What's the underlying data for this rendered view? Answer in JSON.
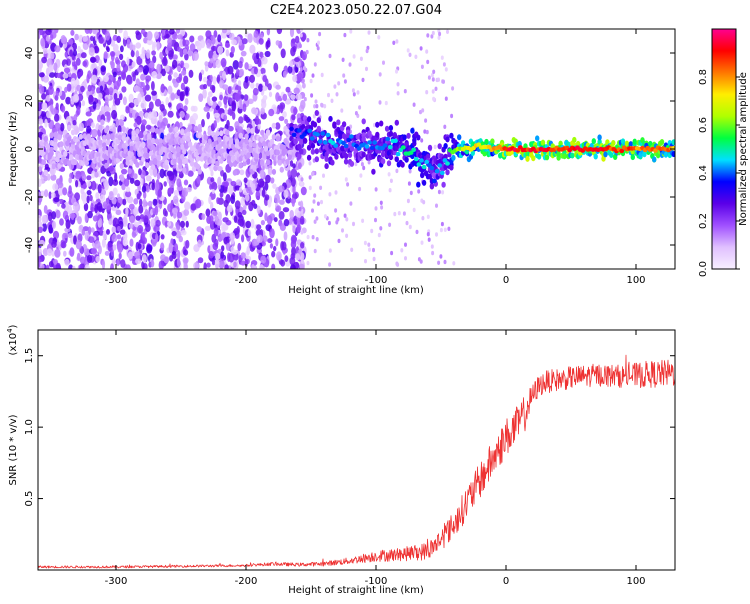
{
  "title": "C2E4.2023.050.22.07.G04",
  "chart_data": [
    {
      "type": "heatmap",
      "id": "spectrogram",
      "xlabel": "Height of straight line (km)",
      "ylabel": "Frequency (Hz)",
      "xlim": [
        -360,
        130
      ],
      "ylim": [
        -50,
        50
      ],
      "xticks": [
        -300,
        -200,
        -100,
        0,
        100
      ],
      "yticks": [
        -40,
        -20,
        0,
        20,
        40
      ],
      "colorbar": {
        "label": "Normalized spectral amplitude",
        "range": [
          0,
          1
        ],
        "ticks": [
          0.0,
          0.2,
          0.4,
          0.6,
          0.8
        ],
        "tick_labels": [
          "0.0",
          "0.2",
          "0.4",
          "0.6",
          "0.8"
        ],
        "colormap": [
          "#f8f0ff",
          "#e0c0ff",
          "#a050ff",
          "#5a00e8",
          "#0000ff",
          "#00e0ff",
          "#00ff40",
          "#b0ff00",
          "#ffee00",
          "#ff7700",
          "#ff0000",
          "#ff0090"
        ]
      },
      "track": {
        "heights": [
          -165,
          -150,
          -135,
          -120,
          -105,
          -90,
          -80,
          -70,
          -60,
          -55,
          -50,
          -45,
          -40,
          -30,
          -20,
          -10,
          0,
          20,
          40,
          60,
          80,
          100,
          120,
          130
        ],
        "frequency": [
          7,
          6,
          3,
          3,
          0,
          2,
          0,
          -2,
          -7,
          -10,
          -8,
          -3,
          0,
          0,
          1,
          0,
          0,
          0,
          0,
          0,
          0,
          0,
          0,
          0
        ],
        "peak_amplitude": [
          0.35,
          0.4,
          0.45,
          0.4,
          0.42,
          0.45,
          0.5,
          0.5,
          0.45,
          0.4,
          0.42,
          0.5,
          0.6,
          0.7,
          0.75,
          0.8,
          0.95,
          0.92,
          0.9,
          0.92,
          0.9,
          0.85,
          0.85,
          0.8
        ]
      },
      "noise_region": {
        "height_range": [
          -360,
          -155
        ],
        "typical_amplitude": 0.2
      }
    },
    {
      "type": "line",
      "id": "snr",
      "xlabel": "Height of straight line (km)",
      "ylabel": "SNR (10 * v/v)",
      "y_multiplier": "(x10",
      "y_multiplier_exp": "4",
      "y_multiplier_close": ")",
      "xlim": [
        -360,
        130
      ],
      "ylim": [
        0,
        1.68
      ],
      "xticks": [
        -300,
        -200,
        -100,
        0,
        100
      ],
      "yticks": [
        0.5,
        1.0,
        1.5
      ],
      "ytick_labels": [
        "0.5",
        "1.0",
        "1.5"
      ],
      "color": "#ee3333",
      "series": [
        {
          "name": "SNR",
          "x": [
            -360,
            -300,
            -250,
            -200,
            -180,
            -160,
            -140,
            -120,
            -100,
            -80,
            -60,
            -50,
            -40,
            -30,
            -20,
            -10,
            0,
            10,
            15,
            20,
            25,
            30,
            50,
            70,
            90,
            110,
            130
          ],
          "y": [
            0.02,
            0.02,
            0.025,
            0.03,
            0.04,
            0.035,
            0.04,
            0.06,
            0.09,
            0.1,
            0.12,
            0.2,
            0.3,
            0.45,
            0.6,
            0.75,
            0.9,
            1.0,
            1.08,
            1.2,
            1.27,
            1.3,
            1.33,
            1.35,
            1.34,
            1.35,
            1.36
          ],
          "noise": [
            0.01,
            0.01,
            0.01,
            0.01,
            0.015,
            0.015,
            0.02,
            0.03,
            0.05,
            0.06,
            0.08,
            0.1,
            0.12,
            0.15,
            0.16,
            0.17,
            0.17,
            0.17,
            0.16,
            0.1,
            0.1,
            0.1,
            0.1,
            0.1,
            0.1,
            0.12,
            0.12
          ]
        }
      ]
    }
  ]
}
